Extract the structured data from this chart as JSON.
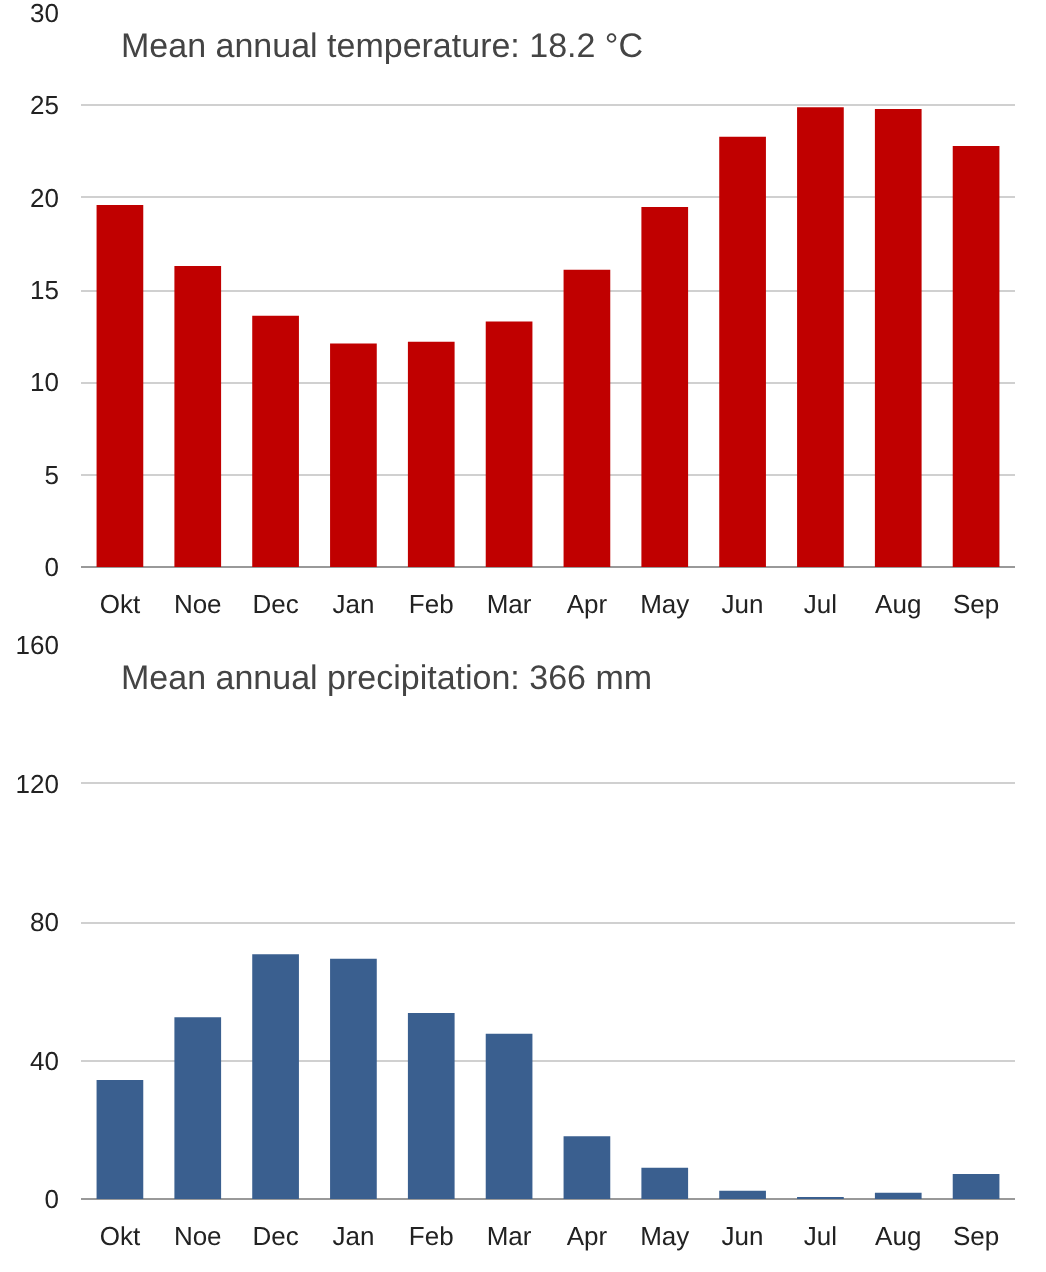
{
  "chart_data": [
    {
      "type": "bar",
      "title": "Mean annual temperature: 18.2 °C",
      "categories": [
        "Okt",
        "Noe",
        "Dec",
        "Jan",
        "Feb",
        "Mar",
        "Apr",
        "May",
        "Jun",
        "Jul",
        "Aug",
        "Sep"
      ],
      "series": [
        {
          "color": "#c00000",
          "values": [
            19.6,
            16.3,
            13.6,
            12.1,
            12.2,
            13.3,
            16.1,
            19.5,
            23.3,
            24.9,
            24.8,
            22.8
          ]
        }
      ],
      "ylim": [
        0,
        30
      ],
      "yticks": [
        0,
        5,
        10,
        15,
        20,
        25,
        30
      ],
      "grid": "y"
    },
    {
      "type": "bar",
      "title": "Mean annual precipitation: 366 mm",
      "categories": [
        "Okt",
        "Noe",
        "Dec",
        "Jan",
        "Feb",
        "Mar",
        "Apr",
        "May",
        "Jun",
        "Jul",
        "Aug",
        "Sep"
      ],
      "series": [
        {
          "color": "#3a5f8f",
          "values": [
            34.4,
            52.5,
            70.7,
            69.4,
            53.7,
            47.7,
            18.1,
            9.0,
            2.4,
            0.6,
            1.8,
            7.2
          ]
        }
      ],
      "ylim": [
        0,
        160
      ],
      "yticks": [
        0,
        40,
        80,
        120,
        160
      ],
      "grid": "y"
    }
  ]
}
